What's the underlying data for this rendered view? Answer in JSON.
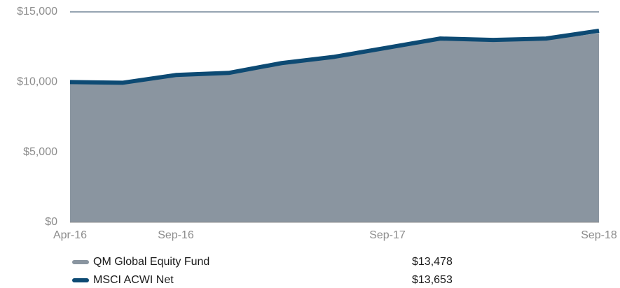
{
  "chart_data": {
    "type": "area-line",
    "categories": [
      "Apr-16",
      null,
      "Sep-16",
      null,
      null,
      null,
      "Sep-17",
      null,
      null,
      null,
      "Sep-18"
    ],
    "series": [
      {
        "name": "QM Global Equity Fund",
        "color": "#8a95a0",
        "style": "area",
        "values": [
          10000,
          9900,
          10400,
          10550,
          11250,
          11700,
          12350,
          13000,
          12900,
          13000,
          13478
        ],
        "legend_value": "$13,478"
      },
      {
        "name": "MSCI ACWI Net",
        "color": "#0d4a73",
        "style": "line",
        "values": [
          10000,
          9950,
          10500,
          10650,
          11350,
          11800,
          12450,
          13100,
          13000,
          13100,
          13653
        ],
        "legend_value": "$13,653"
      }
    ],
    "ylim": [
      0,
      15000
    ],
    "yticks": [
      {
        "value": 0,
        "label": "$0"
      },
      {
        "value": 5000,
        "label": "$5,000"
      },
      {
        "value": 10000,
        "label": "$10,000"
      },
      {
        "value": 15000,
        "label": "$15,000"
      }
    ],
    "grid": true
  }
}
